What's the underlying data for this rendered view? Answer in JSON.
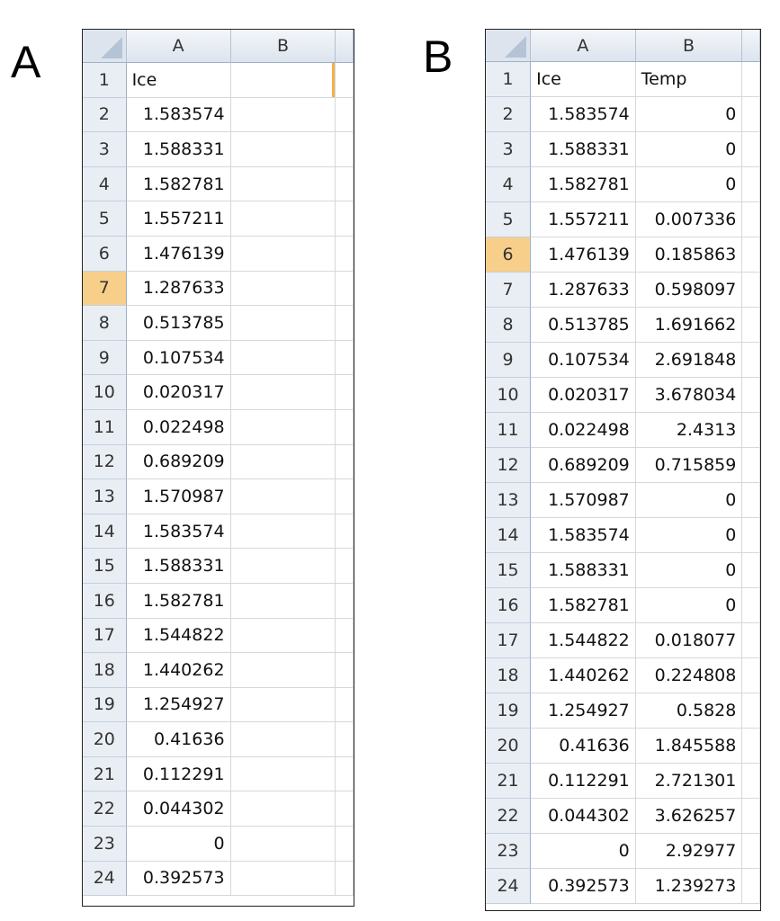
{
  "panels": [
    {
      "label": "A",
      "columns": [
        "A",
        "B"
      ],
      "selected_row": "7",
      "rows": [
        [
          "1",
          "Ice",
          ""
        ],
        [
          "2",
          "1.583574",
          ""
        ],
        [
          "3",
          "1.588331",
          ""
        ],
        [
          "4",
          "1.582781",
          ""
        ],
        [
          "5",
          "1.557211",
          ""
        ],
        [
          "6",
          "1.476139",
          ""
        ],
        [
          "7",
          "1.287633",
          ""
        ],
        [
          "8",
          "0.513785",
          ""
        ],
        [
          "9",
          "0.107534",
          ""
        ],
        [
          "10",
          "0.020317",
          ""
        ],
        [
          "11",
          "0.022498",
          ""
        ],
        [
          "12",
          "0.689209",
          ""
        ],
        [
          "13",
          "1.570987",
          ""
        ],
        [
          "14",
          "1.583574",
          ""
        ],
        [
          "15",
          "1.588331",
          ""
        ],
        [
          "16",
          "1.582781",
          ""
        ],
        [
          "17",
          "1.544822",
          ""
        ],
        [
          "18",
          "1.440262",
          ""
        ],
        [
          "19",
          "1.254927",
          ""
        ],
        [
          "20",
          "0.41636",
          ""
        ],
        [
          "21",
          "0.112291",
          ""
        ],
        [
          "22",
          "0.044302",
          ""
        ],
        [
          "23",
          "0",
          ""
        ],
        [
          "24",
          "0.392573",
          ""
        ]
      ]
    },
    {
      "label": "B",
      "columns": [
        "A",
        "B"
      ],
      "selected_row": "6",
      "rows": [
        [
          "1",
          "Ice",
          "Temp"
        ],
        [
          "2",
          "1.583574",
          "0"
        ],
        [
          "3",
          "1.588331",
          "0"
        ],
        [
          "4",
          "1.582781",
          "0"
        ],
        [
          "5",
          "1.557211",
          "0.007336"
        ],
        [
          "6",
          "1.476139",
          "0.185863"
        ],
        [
          "7",
          "1.287633",
          "0.598097"
        ],
        [
          "8",
          "0.513785",
          "1.691662"
        ],
        [
          "9",
          "0.107534",
          "2.691848"
        ],
        [
          "10",
          "0.020317",
          "3.678034"
        ],
        [
          "11",
          "0.022498",
          "2.4313"
        ],
        [
          "12",
          "0.689209",
          "0.715859"
        ],
        [
          "13",
          "1.570987",
          "0"
        ],
        [
          "14",
          "1.583574",
          "0"
        ],
        [
          "15",
          "1.588331",
          "0"
        ],
        [
          "16",
          "1.582781",
          "0"
        ],
        [
          "17",
          "1.544822",
          "0.018077"
        ],
        [
          "18",
          "1.440262",
          "0.224808"
        ],
        [
          "19",
          "1.254927",
          "0.5828"
        ],
        [
          "20",
          "0.41636",
          "1.845588"
        ],
        [
          "21",
          "0.112291",
          "2.721301"
        ],
        [
          "22",
          "0.044302",
          "3.626257"
        ],
        [
          "23",
          "0",
          "2.92977"
        ],
        [
          "24",
          "0.392573",
          "1.239273"
        ]
      ]
    }
  ]
}
